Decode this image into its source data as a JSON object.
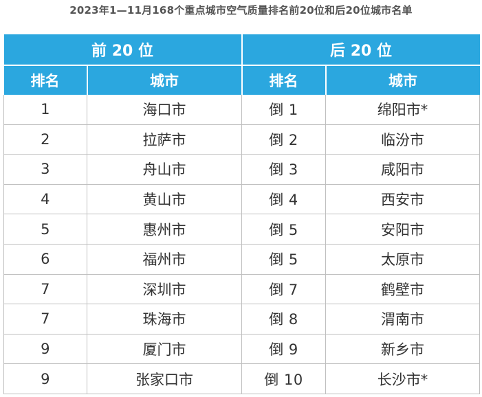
{
  "title": "2023年1—11月168个重点城市空气质量排名前20位和后20位城市名单",
  "table": {
    "groups": [
      "前 20 位",
      "后 20 位"
    ],
    "columns": [
      "排名",
      "城市",
      "排名",
      "城市"
    ],
    "rows": [
      {
        "top_rank": "1",
        "top_city": "海口市",
        "bottom_rank": "倒 1",
        "bottom_city": "绵阳市*"
      },
      {
        "top_rank": "2",
        "top_city": "拉萨市",
        "bottom_rank": "倒 2",
        "bottom_city": "临汾市"
      },
      {
        "top_rank": "3",
        "top_city": "舟山市",
        "bottom_rank": "倒 3",
        "bottom_city": "咸阳市"
      },
      {
        "top_rank": "4",
        "top_city": "黄山市",
        "bottom_rank": "倒 4",
        "bottom_city": "西安市"
      },
      {
        "top_rank": "5",
        "top_city": "惠州市",
        "bottom_rank": "倒 5",
        "bottom_city": "安阳市"
      },
      {
        "top_rank": "6",
        "top_city": "福州市",
        "bottom_rank": "倒 5",
        "bottom_city": "太原市"
      },
      {
        "top_rank": "7",
        "top_city": "深圳市",
        "bottom_rank": "倒 7",
        "bottom_city": "鹤壁市"
      },
      {
        "top_rank": "7",
        "top_city": "珠海市",
        "bottom_rank": "倒 8",
        "bottom_city": "渭南市"
      },
      {
        "top_rank": "9",
        "top_city": "厦门市",
        "bottom_rank": "倒 9",
        "bottom_city": "新乡市"
      },
      {
        "top_rank": "9",
        "top_city": "张家口市",
        "bottom_rank": "倒 10",
        "bottom_city": "长沙市*"
      }
    ]
  }
}
